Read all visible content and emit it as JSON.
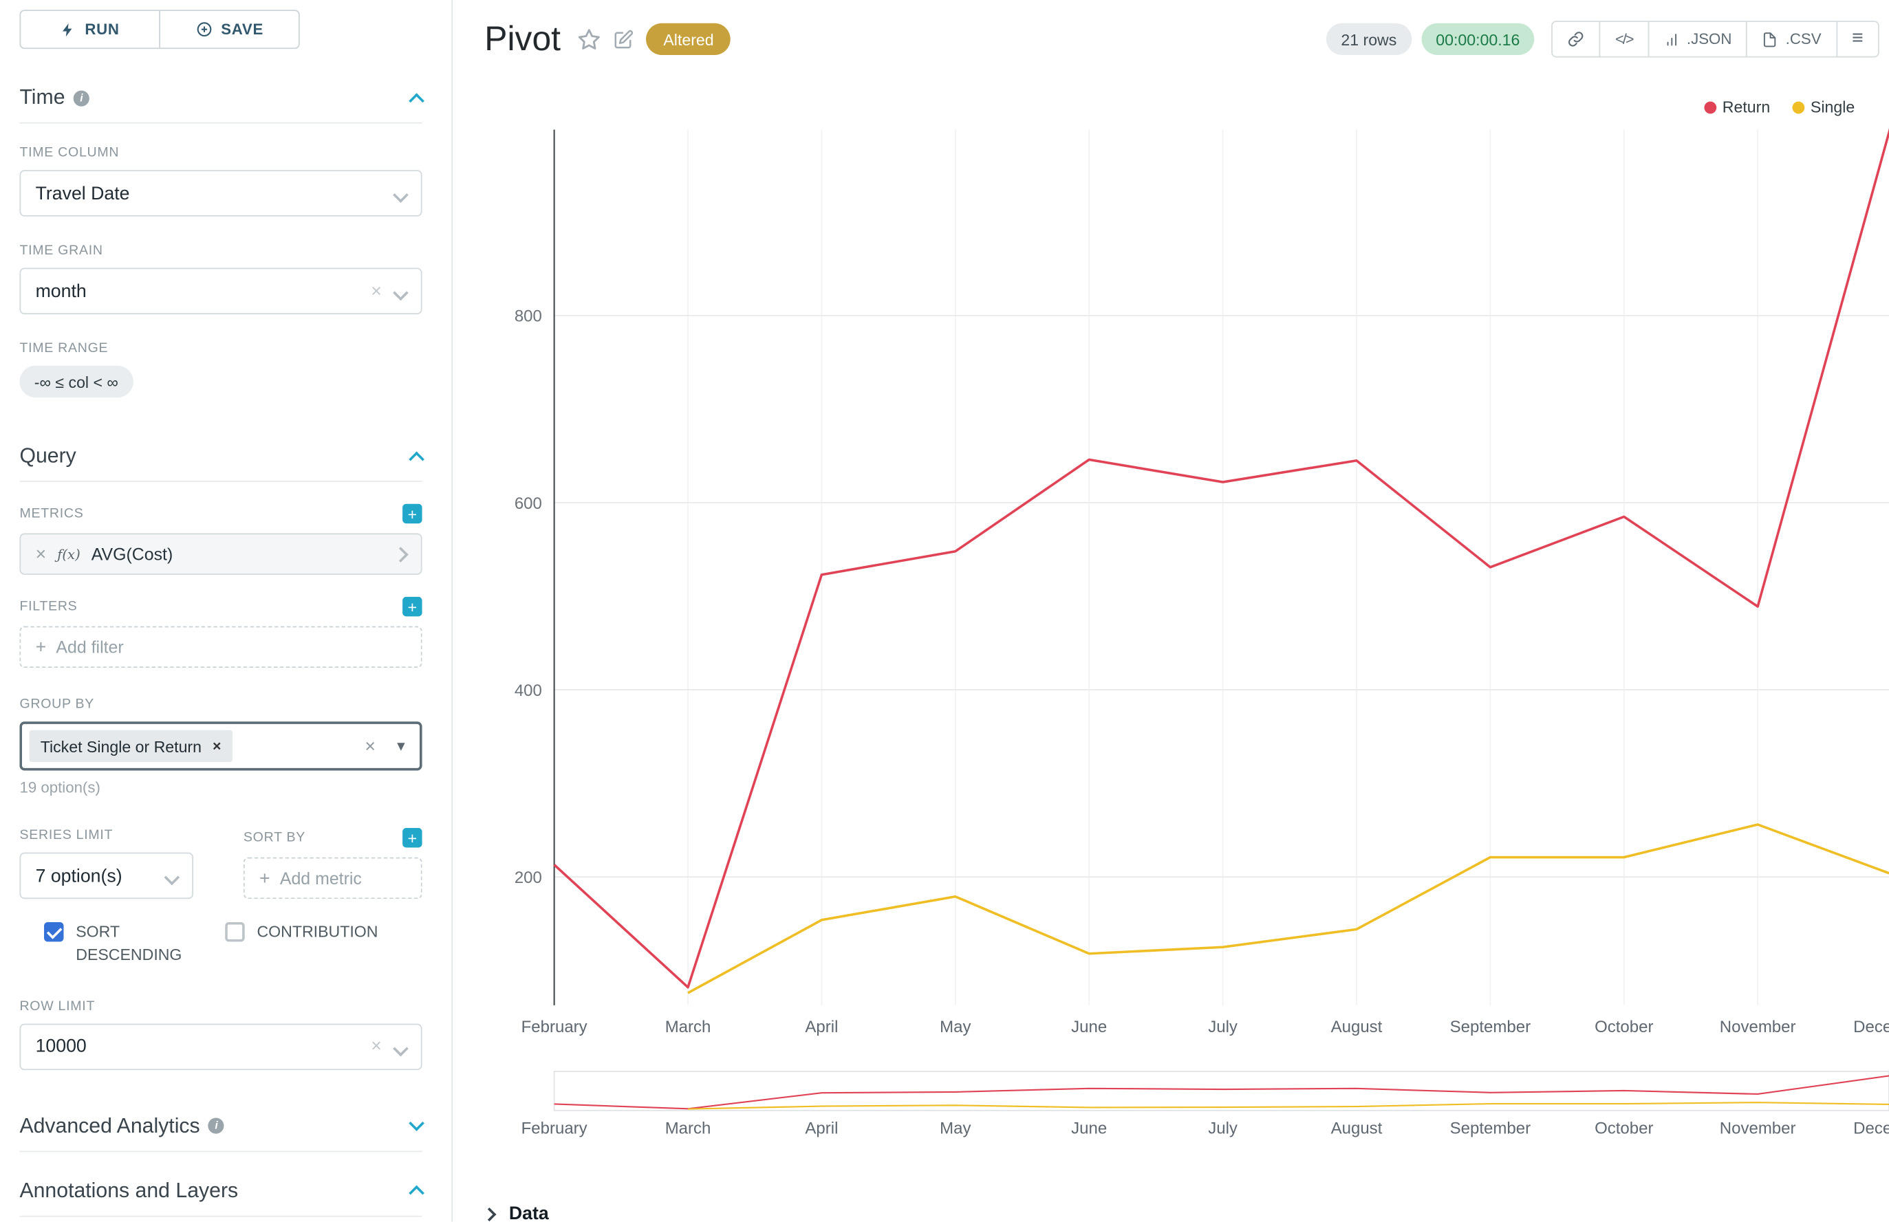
{
  "colors": {
    "accent": "#20a7c9",
    "checkbox-blue": "#3572d8",
    "altered-bg": "#c7a13b",
    "rows-bg": "#e8ebed",
    "timer-bg": "#c6e8d2",
    "timer-text": "#1b7a48"
  },
  "toolbar": {
    "run_label": "RUN",
    "save_label": "SAVE"
  },
  "panels": {
    "time": {
      "title": "Time",
      "time_column": {
        "label": "TIME COLUMN",
        "value": "Travel Date"
      },
      "time_grain": {
        "label": "TIME GRAIN",
        "value": "month"
      },
      "time_range": {
        "label": "TIME RANGE",
        "value": "-∞ ≤ col < ∞"
      }
    },
    "query": {
      "title": "Query",
      "metrics": {
        "label": "METRICS",
        "item": {
          "fx": "ƒ(x)",
          "name": "AVG(Cost)"
        }
      },
      "filters": {
        "label": "FILTERS",
        "placeholder": "Add filter"
      },
      "group_by": {
        "label": "GROUP BY",
        "tag": "Ticket Single or Return",
        "hint": "19 option(s)"
      },
      "series_limit": {
        "label": "SERIES LIMIT",
        "value": "7 option(s)"
      },
      "sort_by": {
        "label": "SORT BY",
        "placeholder": "Add metric"
      },
      "sort_descending": {
        "label": "SORT DESCENDING",
        "checked": true
      },
      "contribution": {
        "label": "CONTRIBUTION",
        "checked": false
      },
      "row_limit": {
        "label": "ROW LIMIT",
        "value": "10000"
      }
    },
    "advanced": {
      "title": "Advanced Analytics"
    },
    "annotations": {
      "title": "Annotations and Layers"
    }
  },
  "header": {
    "title": "Pivot",
    "badge": "Altered",
    "rows_badge": "21 rows",
    "timer": "00:00:00.16",
    "buttons": {
      "code": "</>",
      "json": ".JSON",
      "csv": ".CSV"
    }
  },
  "chart_data": {
    "type": "line",
    "title": "Pivot",
    "categories": [
      "February",
      "March",
      "April",
      "May",
      "June",
      "July",
      "August",
      "September",
      "October",
      "November",
      "December"
    ],
    "series": [
      {
        "name": "Return",
        "color": "#e04355",
        "values": [
          213,
          82,
          523,
          548,
          646,
          622,
          645,
          531,
          585,
          489,
          1005
        ]
      },
      {
        "name": "Single",
        "color": "#efbe25",
        "values": [
          null,
          76,
          154,
          179,
          118,
          125,
          144,
          221,
          221,
          256,
          203
        ]
      }
    ],
    "yticks": [
      200,
      400,
      600,
      800
    ],
    "ylim": [
      0,
      1050
    ],
    "xlabel": "",
    "ylabel": "",
    "grid": true,
    "legend_position": "top-right",
    "has_range_selector_mini_chart": true
  },
  "footer": {
    "data_label": "Data"
  }
}
